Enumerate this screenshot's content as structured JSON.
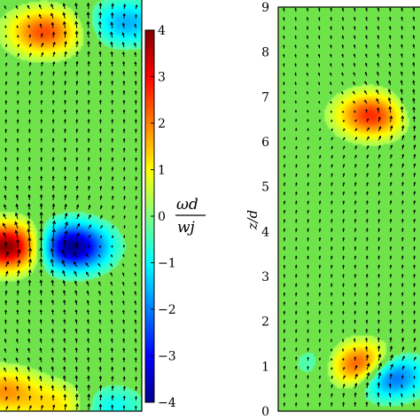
{
  "chart_data": [
    {
      "type": "heatmap",
      "panel": "left",
      "title": "",
      "xlabel": "",
      "ylabel": "",
      "ylim": [
        0,
        9
      ],
      "quantity": "vorticity",
      "vortices": [
        {
          "x": 0.62,
          "z": 8.2,
          "strength": 2.4
        },
        {
          "x": 1.78,
          "z": 8.4,
          "strength": -1.6
        },
        {
          "x": 0.1,
          "z": 3.6,
          "strength": 4.0
        },
        {
          "x": 1.02,
          "z": 3.6,
          "strength": -4.0
        },
        {
          "x": 0.05,
          "z": 0.5,
          "strength": 1.8
        },
        {
          "x": 0.8,
          "z": 0.2,
          "strength": 1.2
        },
        {
          "x": 1.55,
          "z": 0.15,
          "strength": -1.0
        }
      ]
    },
    {
      "type": "heatmap",
      "panel": "right",
      "title": "",
      "xlabel": "",
      "ylabel": "z/d",
      "ylim": [
        0,
        9
      ],
      "yticks": [
        "0",
        "1",
        "2",
        "3",
        "4",
        "5",
        "6",
        "7",
        "8",
        "9"
      ],
      "quantity": "vorticity",
      "vortices": [
        {
          "x": 1.35,
          "z": 6.6,
          "strength": 3.0
        },
        {
          "x": 1.75,
          "z": 6.7,
          "strength": -0.8
        },
        {
          "x": 1.15,
          "z": 1.0,
          "strength": 4.0
        },
        {
          "x": 1.52,
          "z": 0.8,
          "strength": -3.2
        },
        {
          "x": 0.75,
          "z": 1.05,
          "strength": -1.2
        }
      ]
    }
  ],
  "colorbar": {
    "label_top": "ωd",
    "label_bottom": "wj",
    "range": [
      -4,
      4
    ],
    "ticks": [
      "4",
      "3",
      "2",
      "1",
      "0",
      "−1",
      "−2",
      "−3",
      "−4"
    ],
    "colormap": "jet"
  },
  "colors": {
    "background_field": "#6fe34a",
    "arrow": "#000000"
  }
}
